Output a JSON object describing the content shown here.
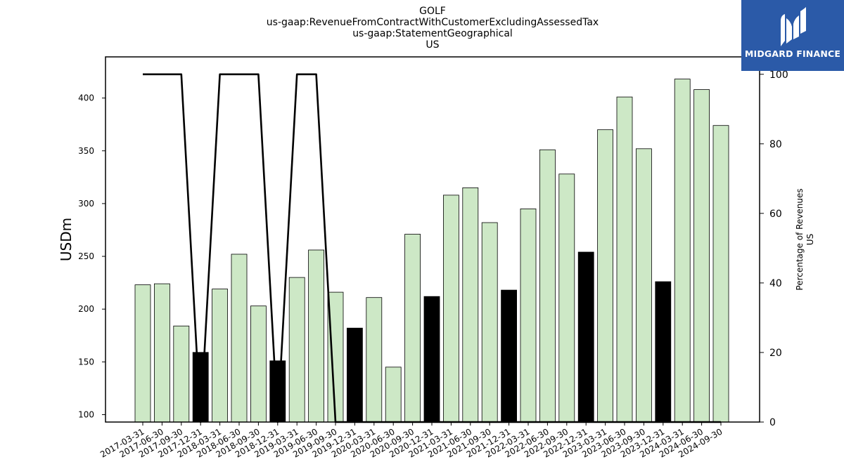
{
  "chart_data": {
    "type": "bar",
    "title_lines": [
      "GOLF",
      "us-gaap:RevenueFromContractWithCustomerExcludingAssessedTax",
      "us-gaap:StatementGeographical",
      "US"
    ],
    "ylabel": "USDm",
    "y2label_lines": [
      "Percentage of Revenues",
      "US"
    ],
    "ylim": [
      93,
      439
    ],
    "y2lim": [
      0,
      105
    ],
    "yticks": [
      100,
      150,
      200,
      250,
      300,
      350,
      400
    ],
    "y2ticks": [
      0,
      20,
      40,
      60,
      80,
      100
    ],
    "categories": [
      "2017-03-31",
      "2017-06-30",
      "2017-09-30",
      "2017-12-31",
      "2018-03-31",
      "2018-06-30",
      "2018-09-30",
      "2018-12-31",
      "2019-03-31",
      "2019-06-30",
      "2019-09-30",
      "2019-12-31",
      "2020-03-31",
      "2020-06-30",
      "2020-09-30",
      "2020-12-31",
      "2021-03-31",
      "2021-06-30",
      "2021-09-30",
      "2021-12-31",
      "2022-03-31",
      "2022-06-30",
      "2022-09-30",
      "2022-12-31",
      "2023-03-31",
      "2023-06-30",
      "2023-09-30",
      "2023-12-31",
      "2024-03-31",
      "2024-06-30",
      "2024-09-30"
    ],
    "series": [
      {
        "type": "bar",
        "values": [
          223,
          224,
          184,
          159,
          219,
          252,
          203,
          151,
          230,
          256,
          216,
          182,
          211,
          145,
          271,
          212,
          308,
          315,
          282,
          218,
          295,
          351,
          328,
          254,
          370,
          401,
          352,
          226,
          418,
          408,
          374
        ],
        "colors": [
          "#cde8c6",
          "#cde8c6",
          "#cde8c6",
          "#000000",
          "#cde8c6",
          "#cde8c6",
          "#cde8c6",
          "#000000",
          "#cde8c6",
          "#cde8c6",
          "#cde8c6",
          "#000000",
          "#cde8c6",
          "#cde8c6",
          "#cde8c6",
          "#000000",
          "#cde8c6",
          "#cde8c6",
          "#cde8c6",
          "#000000",
          "#cde8c6",
          "#cde8c6",
          "#cde8c6",
          "#000000",
          "#cde8c6",
          "#cde8c6",
          "#cde8c6",
          "#000000",
          "#cde8c6",
          "#cde8c6",
          "#cde8c6"
        ]
      },
      {
        "type": "line",
        "axis": "right",
        "color": "#000000",
        "values": [
          100,
          100,
          100,
          0,
          100,
          100,
          100,
          0,
          100,
          100,
          0,
          0,
          0,
          0,
          0,
          0,
          0,
          0,
          0,
          0,
          0,
          0,
          0,
          0,
          0,
          0,
          0,
          0,
          0,
          0,
          0
        ]
      }
    ],
    "grid": false,
    "legend": "none"
  },
  "logo": {
    "text": "MIDGARD FINANCE",
    "color": "#2b5aa8"
  }
}
